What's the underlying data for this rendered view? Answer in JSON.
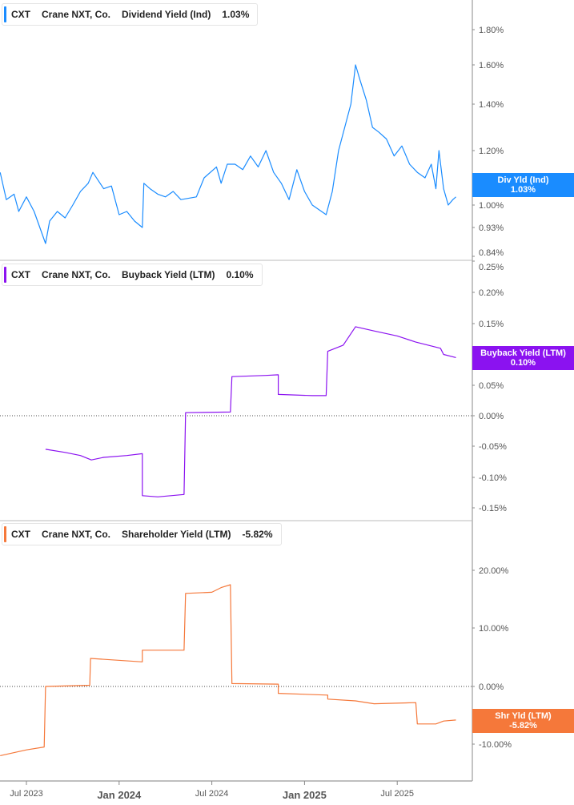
{
  "colors": {
    "div": "#1a8cff",
    "buyback": "#8b12f0",
    "shareholder": "#f5783a"
  },
  "chart_data": [
    {
      "type": "line",
      "ticker": "CXT",
      "company": "Crane NXT, Co.",
      "title": "Dividend Yield (Ind)",
      "last": "1.03%",
      "tag_label": "Div Yld (Ind)",
      "tag_value": "1.03%",
      "yticks": [
        "1.80%",
        "1.60%",
        "1.40%",
        "1.20%",
        "1.00%",
        "0.93%",
        "0.84%"
      ],
      "ytick_values": [
        1.8,
        1.6,
        1.4,
        1.2,
        1.0,
        0.93,
        0.84
      ],
      "x_unit": "months since Jul 2023",
      "points": [
        [
          -1.7,
          1.12
        ],
        [
          -1.3,
          1.02
        ],
        [
          -0.8,
          1.04
        ],
        [
          -0.5,
          0.98
        ],
        [
          0,
          1.03
        ],
        [
          0.5,
          0.98
        ],
        [
          1.24,
          0.88
        ],
        [
          1.5,
          0.95
        ],
        [
          2,
          0.98
        ],
        [
          2.5,
          0.96
        ],
        [
          3,
          1.0
        ],
        [
          3.5,
          1.05
        ],
        [
          4,
          1.08
        ],
        [
          4.3,
          1.12
        ],
        [
          5,
          1.06
        ],
        [
          5.5,
          1.07
        ],
        [
          6,
          0.97
        ],
        [
          6.5,
          0.98
        ],
        [
          7,
          0.95
        ],
        [
          7.5,
          0.93
        ],
        [
          7.6,
          1.08
        ],
        [
          8,
          1.06
        ],
        [
          8.5,
          1.04
        ],
        [
          9,
          1.03
        ],
        [
          9.5,
          1.05
        ],
        [
          10,
          1.02
        ],
        [
          11,
          1.03
        ],
        [
          11.5,
          1.1
        ],
        [
          12.3,
          1.14
        ],
        [
          12.6,
          1.08
        ],
        [
          13,
          1.15
        ],
        [
          13.5,
          1.15
        ],
        [
          14,
          1.13
        ],
        [
          14.5,
          1.18
        ],
        [
          15,
          1.14
        ],
        [
          15.5,
          1.2
        ],
        [
          16,
          1.12
        ],
        [
          16.5,
          1.08
        ],
        [
          17,
          1.02
        ],
        [
          17.5,
          1.13
        ],
        [
          18,
          1.05
        ],
        [
          18.5,
          1.0
        ],
        [
          19.4,
          0.97
        ],
        [
          19.8,
          1.05
        ],
        [
          20.2,
          1.2
        ],
        [
          20.6,
          1.3
        ],
        [
          21,
          1.4
        ],
        [
          21.3,
          1.6
        ],
        [
          21.6,
          1.52
        ],
        [
          22,
          1.42
        ],
        [
          22.4,
          1.3
        ],
        [
          22.8,
          1.28
        ],
        [
          23.3,
          1.25
        ],
        [
          23.8,
          1.18
        ],
        [
          24.3,
          1.22
        ],
        [
          24.8,
          1.15
        ],
        [
          25.3,
          1.12
        ],
        [
          25.8,
          1.1
        ],
        [
          26.2,
          1.15
        ],
        [
          26.5,
          1.06
        ],
        [
          26.7,
          1.2
        ],
        [
          27.0,
          1.06
        ],
        [
          27.3,
          1.0
        ],
        [
          27.6,
          1.02
        ],
        [
          27.8,
          1.03
        ]
      ]
    },
    {
      "type": "line",
      "ticker": "CXT",
      "company": "Crane NXT, Co.",
      "title": "Buyback Yield (LTM)",
      "last": "0.10%",
      "tag_label": "Buyback Yield (LTM)",
      "tag_value": "0.10%",
      "yticks": [
        "0.25%",
        "0.20%",
        "0.15%",
        "0.05%",
        "0.00%",
        "-0.05%",
        "-0.10%",
        "-0.15%"
      ],
      "ytick_values": [
        0.25,
        0.2,
        0.15,
        0.05,
        0,
        -0.05,
        -0.1,
        -0.15
      ],
      "points": [
        [
          1.24,
          -0.055
        ],
        [
          2.5,
          -0.06
        ],
        [
          3.5,
          -0.065
        ],
        [
          4.2,
          -0.072
        ],
        [
          5,
          -0.068
        ],
        [
          6.5,
          -0.065
        ],
        [
          7.5,
          -0.062
        ],
        [
          7.5,
          -0.13
        ],
        [
          8.5,
          -0.132
        ],
        [
          10.2,
          -0.128
        ],
        [
          10.3,
          0.005
        ],
        [
          13.2,
          0.006
        ],
        [
          13.3,
          0.064
        ],
        [
          15.5,
          0.066
        ],
        [
          16.3,
          0.067
        ],
        [
          16.3,
          0.035
        ],
        [
          18.5,
          0.033
        ],
        [
          19.4,
          0.033
        ],
        [
          19.5,
          0.105
        ],
        [
          20.5,
          0.115
        ],
        [
          21.3,
          0.145
        ],
        [
          22.5,
          0.138
        ],
        [
          24,
          0.13
        ],
        [
          25.2,
          0.12
        ],
        [
          26,
          0.115
        ],
        [
          26.8,
          0.11
        ],
        [
          27,
          0.1
        ],
        [
          27.8,
          0.095
        ]
      ]
    },
    {
      "type": "line",
      "ticker": "CXT",
      "company": "Crane NXT, Co.",
      "title": "Shareholder Yield (LTM)",
      "last": "-5.82%",
      "tag_label": "Shr Yld (LTM)",
      "tag_value": "-5.82%",
      "yticks": [
        "20.00%",
        "10.00%",
        "0.00%",
        "-10.00%"
      ],
      "ytick_values": [
        20,
        10,
        0,
        -10
      ],
      "points": [
        [
          -1.7,
          -12
        ],
        [
          0,
          -11
        ],
        [
          1.15,
          -10.5
        ],
        [
          1.24,
          0
        ],
        [
          4.1,
          0.2
        ],
        [
          4.15,
          4.8
        ],
        [
          7.5,
          4.2
        ],
        [
          7.5,
          6.2
        ],
        [
          10.2,
          6.2
        ],
        [
          10.3,
          16
        ],
        [
          12,
          16.2
        ],
        [
          12.6,
          17
        ],
        [
          13.2,
          17.5
        ],
        [
          13.3,
          0.5
        ],
        [
          16.3,
          0.4
        ],
        [
          16.3,
          -1.2
        ],
        [
          19.5,
          -1.5
        ],
        [
          19.5,
          -2.2
        ],
        [
          21.3,
          -2.5
        ],
        [
          22.5,
          -3
        ],
        [
          25.2,
          -2.8
        ],
        [
          25.3,
          -6.5
        ],
        [
          26.5,
          -6.5
        ],
        [
          27,
          -6
        ],
        [
          27.8,
          -5.82
        ]
      ]
    }
  ],
  "x_axis": {
    "labels": [
      "Jul 2023",
      "Jan 2024",
      "Jul 2024",
      "Jan 2025",
      "Jul 2025"
    ],
    "label_months": [
      0,
      6,
      12,
      18,
      24
    ]
  }
}
